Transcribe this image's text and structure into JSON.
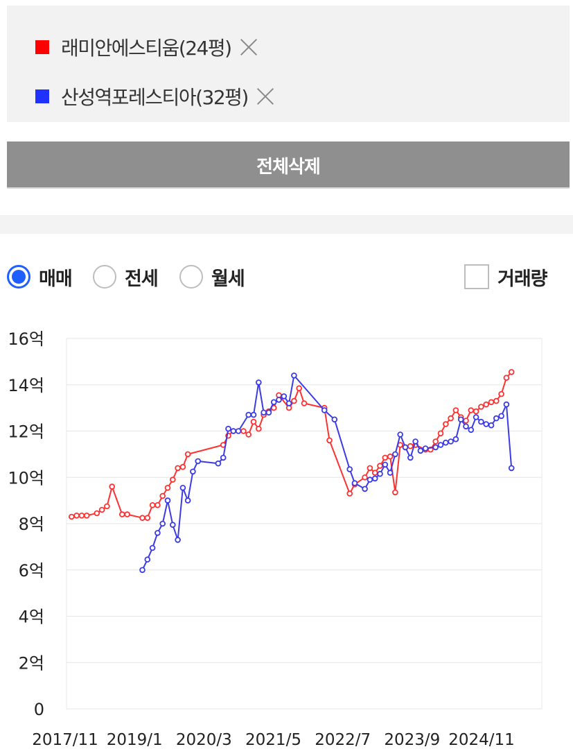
{
  "compare_list": [
    {
      "label": "래미안에스티움(24평)",
      "color": "#ff0000"
    },
    {
      "label": "산성역포레스티아(32평)",
      "color": "#1f32ff"
    }
  ],
  "delete_all_label": "전체삭제",
  "trade_types": [
    {
      "label": "매매",
      "selected": true
    },
    {
      "label": "전세",
      "selected": false
    },
    {
      "label": "월세",
      "selected": false
    }
  ],
  "volume_toggle": {
    "label": "거래량",
    "checked": false
  },
  "chart_data": {
    "type": "line",
    "y_ticks": [
      "0",
      "2억",
      "4억",
      "6억",
      "8억",
      "10억",
      "12억",
      "14억",
      "16억"
    ],
    "ylim": [
      0,
      16
    ],
    "y_unit": "억",
    "x_ticks": [
      "2017/11",
      "2019/1",
      "2020/3",
      "2021/5",
      "2022/7",
      "2023/9",
      "2024/11"
    ],
    "xlim": [
      "2017-10",
      "2025-08"
    ],
    "grid": true,
    "series": [
      {
        "name": "래미안에스티움(24평)",
        "color": "#ff3030",
        "points": [
          [
            "2017-11",
            8.3
          ],
          [
            "2017-12",
            8.35
          ],
          [
            "2018-01",
            8.35
          ],
          [
            "2018-02",
            8.35
          ],
          [
            "2018-04",
            8.45
          ],
          [
            "2018-05",
            8.6
          ],
          [
            "2018-06",
            8.75
          ],
          [
            "2018-07",
            9.6
          ],
          [
            "2018-09",
            8.4
          ],
          [
            "2018-10",
            8.4
          ],
          [
            "2019-01",
            8.25
          ],
          [
            "2019-02",
            8.25
          ],
          [
            "2019-03",
            8.8
          ],
          [
            "2019-04",
            8.8
          ],
          [
            "2019-05",
            9.2
          ],
          [
            "2019-06",
            9.55
          ],
          [
            "2019-07",
            9.9
          ],
          [
            "2019-08",
            10.4
          ],
          [
            "2019-09",
            10.45
          ],
          [
            "2019-10",
            11.0
          ],
          [
            "2020-05",
            11.4
          ],
          [
            "2020-06",
            11.8
          ],
          [
            "2020-07",
            12.0
          ],
          [
            "2020-09",
            12.0
          ],
          [
            "2020-10",
            11.85
          ],
          [
            "2020-11",
            12.4
          ],
          [
            "2020-12",
            12.1
          ],
          [
            "2021-01",
            12.7
          ],
          [
            "2021-02",
            12.85
          ],
          [
            "2021-03",
            13.0
          ],
          [
            "2021-04",
            13.55
          ],
          [
            "2021-06",
            13.0
          ],
          [
            "2021-07",
            13.3
          ],
          [
            "2021-08",
            13.85
          ],
          [
            "2021-09",
            13.2
          ],
          [
            "2022-01",
            13.0
          ],
          [
            "2022-02",
            11.6
          ],
          [
            "2022-06",
            9.3
          ],
          [
            "2022-07",
            9.7
          ],
          [
            "2022-09",
            10.0
          ],
          [
            "2022-10",
            10.4
          ],
          [
            "2022-11",
            10.2
          ],
          [
            "2022-12",
            10.5
          ],
          [
            "2023-01",
            10.85
          ],
          [
            "2023-02",
            10.9
          ],
          [
            "2023-03",
            9.35
          ],
          [
            "2023-04",
            11.4
          ],
          [
            "2023-05",
            11.3
          ],
          [
            "2023-06",
            11.35
          ],
          [
            "2023-07",
            11.4
          ],
          [
            "2023-09",
            11.2
          ],
          [
            "2023-10",
            11.2
          ],
          [
            "2023-11",
            11.55
          ],
          [
            "2023-12",
            11.9
          ],
          [
            "2024-01",
            12.3
          ],
          [
            "2024-02",
            12.55
          ],
          [
            "2024-03",
            12.9
          ],
          [
            "2024-04",
            12.6
          ],
          [
            "2024-05",
            12.45
          ],
          [
            "2024-06",
            12.9
          ],
          [
            "2024-07",
            12.85
          ],
          [
            "2024-08",
            13.05
          ],
          [
            "2024-09",
            13.15
          ],
          [
            "2024-10",
            13.25
          ],
          [
            "2024-11",
            13.3
          ],
          [
            "2024-12",
            13.6
          ],
          [
            "2025-01",
            14.3
          ],
          [
            "2025-02",
            14.55
          ]
        ]
      },
      {
        "name": "산성역포레스티아(32평)",
        "color": "#3a3ae6",
        "points": [
          [
            "2019-01",
            6.0
          ],
          [
            "2019-02",
            6.45
          ],
          [
            "2019-03",
            6.95
          ],
          [
            "2019-04",
            7.6
          ],
          [
            "2019-05",
            8.0
          ],
          [
            "2019-06",
            9.0
          ],
          [
            "2019-07",
            7.95
          ],
          [
            "2019-08",
            7.3
          ],
          [
            "2019-09",
            9.55
          ],
          [
            "2019-10",
            9.0
          ],
          [
            "2019-11",
            10.25
          ],
          [
            "2019-12",
            10.7
          ],
          [
            "2020-04",
            10.6
          ],
          [
            "2020-05",
            10.85
          ],
          [
            "2020-06",
            12.1
          ],
          [
            "2020-07",
            12.0
          ],
          [
            "2020-08",
            12.0
          ],
          [
            "2020-10",
            12.7
          ],
          [
            "2020-11",
            12.7
          ],
          [
            "2020-12",
            14.1
          ],
          [
            "2021-01",
            12.8
          ],
          [
            "2021-02",
            12.8
          ],
          [
            "2021-03",
            13.25
          ],
          [
            "2021-04",
            13.35
          ],
          [
            "2021-05",
            13.5
          ],
          [
            "2021-06",
            13.2
          ],
          [
            "2021-07",
            14.4
          ],
          [
            "2022-01",
            12.9
          ],
          [
            "2022-03",
            12.5
          ],
          [
            "2022-06",
            10.35
          ],
          [
            "2022-07",
            9.75
          ],
          [
            "2022-09",
            9.5
          ],
          [
            "2022-10",
            9.9
          ],
          [
            "2022-11",
            9.95
          ],
          [
            "2022-12",
            10.15
          ],
          [
            "2023-01",
            10.55
          ],
          [
            "2023-02",
            10.2
          ],
          [
            "2023-03",
            11.0
          ],
          [
            "2023-04",
            11.85
          ],
          [
            "2023-05",
            11.3
          ],
          [
            "2023-06",
            10.85
          ],
          [
            "2023-07",
            11.55
          ],
          [
            "2023-08",
            11.15
          ],
          [
            "2023-09",
            11.25
          ],
          [
            "2023-11",
            11.3
          ],
          [
            "2023-12",
            11.4
          ],
          [
            "2024-01",
            11.5
          ],
          [
            "2024-02",
            11.55
          ],
          [
            "2024-03",
            11.65
          ],
          [
            "2024-04",
            12.5
          ],
          [
            "2024-05",
            12.2
          ],
          [
            "2024-06",
            12.05
          ],
          [
            "2024-07",
            12.6
          ],
          [
            "2024-08",
            12.4
          ],
          [
            "2024-09",
            12.3
          ],
          [
            "2024-10",
            12.25
          ],
          [
            "2024-11",
            12.55
          ],
          [
            "2024-12",
            12.65
          ],
          [
            "2025-01",
            13.15
          ],
          [
            "2025-02",
            10.4
          ]
        ]
      }
    ]
  }
}
